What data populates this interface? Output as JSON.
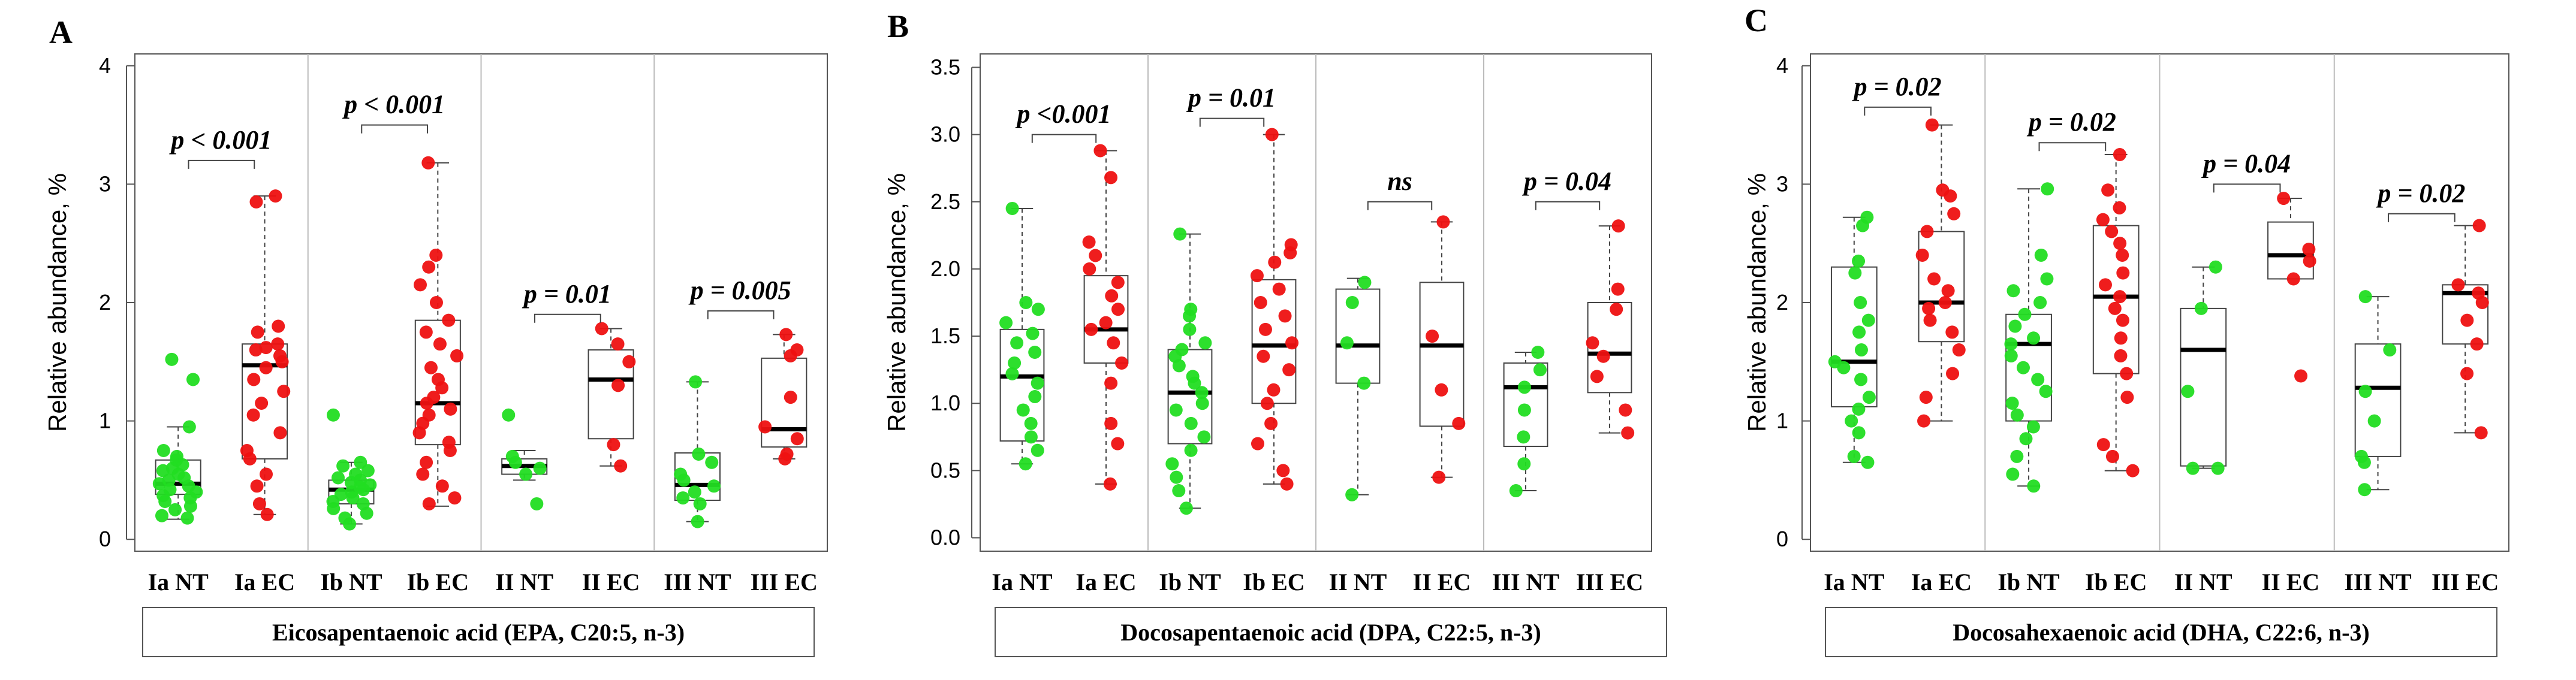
{
  "figure": {
    "panels": [
      "A",
      "B",
      "C"
    ]
  },
  "colors": {
    "nt": "#22dd22",
    "ec": "#ee1111",
    "box": "#444444",
    "frame": "#555555",
    "divider": "#bbbbbb",
    "text": "#000000"
  },
  "chart_data": [
    {
      "type": "box",
      "panel_label": "A",
      "title": "Eicosapentaenoic acid (EPA, C20:5, n-3)",
      "ylabel": "Relative abundance, %",
      "ylim": [
        -0.1,
        4.1
      ],
      "yticks": [
        0,
        1,
        2,
        3,
        4
      ],
      "ytick_labels": [
        "0",
        "1",
        "2",
        "3",
        "4"
      ],
      "categories": [
        "Ia NT",
        "Ia EC",
        "Ib NT",
        "Ib EC",
        "II NT",
        "II EC",
        "III NT",
        "III EC"
      ],
      "boxes": [
        {
          "min": 0.17,
          "q1": 0.38,
          "median": 0.47,
          "q3": 0.67,
          "max": 0.95
        },
        {
          "min": 0.21,
          "q1": 0.68,
          "median": 1.47,
          "q3": 1.65,
          "max": 2.9
        },
        {
          "min": 0.13,
          "q1": 0.3,
          "median": 0.42,
          "q3": 0.5,
          "max": 0.65
        },
        {
          "min": 0.28,
          "q1": 0.8,
          "median": 1.15,
          "q3": 1.85,
          "max": 3.18
        },
        {
          "min": 0.5,
          "q1": 0.55,
          "median": 0.62,
          "q3": 0.68,
          "max": 0.75
        },
        {
          "min": 0.62,
          "q1": 0.85,
          "median": 1.35,
          "q3": 1.6,
          "max": 1.78
        },
        {
          "min": 0.15,
          "q1": 0.33,
          "median": 0.46,
          "q3": 0.73,
          "max": 1.33
        },
        {
          "min": 0.68,
          "q1": 0.78,
          "median": 0.93,
          "q3": 1.53,
          "max": 1.73
        }
      ],
      "points": [
        [
          0.18,
          0.2,
          0.25,
          0.28,
          0.32,
          0.35,
          0.37,
          0.4,
          0.42,
          0.45,
          0.47,
          0.5,
          0.52,
          0.55,
          0.58,
          0.6,
          0.63,
          0.67,
          0.7,
          0.75,
          0.95,
          1.35,
          1.52
        ],
        [
          0.21,
          0.3,
          0.45,
          0.55,
          0.68,
          0.75,
          0.9,
          1.05,
          1.15,
          1.25,
          1.35,
          1.45,
          1.5,
          1.55,
          1.6,
          1.62,
          1.65,
          1.75,
          1.8,
          2.85,
          2.9
        ],
        [
          0.13,
          0.18,
          0.22,
          0.26,
          0.3,
          0.32,
          0.35,
          0.38,
          0.4,
          0.42,
          0.44,
          0.46,
          0.48,
          0.5,
          0.52,
          0.55,
          0.58,
          0.62,
          0.65,
          1.05
        ],
        [
          0.3,
          0.35,
          0.45,
          0.55,
          0.65,
          0.75,
          0.82,
          0.9,
          0.98,
          1.05,
          1.1,
          1.15,
          1.2,
          1.28,
          1.35,
          1.45,
          1.55,
          1.65,
          1.75,
          1.85,
          2.0,
          2.15,
          2.3,
          2.4,
          3.18
        ],
        [
          0.3,
          0.55,
          0.6,
          0.65,
          0.7,
          1.05
        ],
        [
          0.62,
          0.8,
          1.3,
          1.5,
          1.65,
          1.78
        ],
        [
          0.15,
          0.3,
          0.35,
          0.4,
          0.45,
          0.5,
          0.55,
          0.65,
          0.72,
          1.33
        ],
        [
          0.68,
          0.72,
          0.85,
          0.95,
          1.2,
          1.55,
          1.6,
          1.73
        ]
      ],
      "comparisons": [
        {
          "label": "p < 0.001",
          "value": 3.2
        },
        {
          "label": "p < 0.001",
          "value": 3.5
        },
        {
          "label": "p = 0.01",
          "value": 1.9
        },
        {
          "label": "p = 0.005",
          "value": 1.93
        }
      ]
    },
    {
      "type": "box",
      "panel_label": "B",
      "title": "Docosapentaenoic acid (DPA, C22:5, n-3)",
      "ylabel": "Relative abundance, %",
      "ylim": [
        -0.1,
        3.6
      ],
      "yticks": [
        0,
        0.5,
        1,
        1.5,
        2,
        2.5,
        3,
        3.5
      ],
      "ytick_labels": [
        "0.0",
        "0.5",
        "1.0",
        "1.5",
        "2.0",
        "2.5",
        "3.0",
        "3.5"
      ],
      "categories": [
        "Ia NT",
        "Ia EC",
        "Ib NT",
        "Ib EC",
        "II NT",
        "II EC",
        "III NT",
        "III EC"
      ],
      "boxes": [
        {
          "min": 0.55,
          "q1": 0.72,
          "median": 1.2,
          "q3": 1.55,
          "max": 2.45
        },
        {
          "min": 0.4,
          "q1": 1.3,
          "median": 1.55,
          "q3": 1.95,
          "max": 2.88
        },
        {
          "min": 0.22,
          "q1": 0.7,
          "median": 1.08,
          "q3": 1.4,
          "max": 2.26
        },
        {
          "min": 0.4,
          "q1": 1.0,
          "median": 1.43,
          "q3": 1.92,
          "max": 3.0
        },
        {
          "min": 0.32,
          "q1": 1.15,
          "median": 1.43,
          "q3": 1.85,
          "max": 1.93
        },
        {
          "min": 0.45,
          "q1": 0.83,
          "median": 1.43,
          "q3": 1.9,
          "max": 2.35
        },
        {
          "min": 0.35,
          "q1": 0.68,
          "median": 1.12,
          "q3": 1.3,
          "max": 1.38
        },
        {
          "min": 0.78,
          "q1": 1.08,
          "median": 1.37,
          "q3": 1.75,
          "max": 2.32
        }
      ],
      "points": [
        [
          0.55,
          0.65,
          0.75,
          0.85,
          0.95,
          1.05,
          1.15,
          1.22,
          1.3,
          1.38,
          1.45,
          1.52,
          1.6,
          1.7,
          1.75,
          2.45
        ],
        [
          0.4,
          0.7,
          0.85,
          1.15,
          1.3,
          1.45,
          1.55,
          1.6,
          1.7,
          1.8,
          1.9,
          2.0,
          2.1,
          2.2,
          2.68,
          2.88
        ],
        [
          0.22,
          0.35,
          0.45,
          0.55,
          0.65,
          0.75,
          0.85,
          0.95,
          1.0,
          1.08,
          1.15,
          1.2,
          1.28,
          1.35,
          1.4,
          1.45,
          1.55,
          1.65,
          1.7,
          2.26
        ],
        [
          0.4,
          0.5,
          0.7,
          0.85,
          1.0,
          1.1,
          1.25,
          1.35,
          1.45,
          1.55,
          1.65,
          1.75,
          1.85,
          1.95,
          2.05,
          2.12,
          2.18,
          3.0
        ],
        [
          0.32,
          1.15,
          1.45,
          1.75,
          1.9
        ],
        [
          0.45,
          0.85,
          1.1,
          1.5,
          2.35
        ],
        [
          0.35,
          0.55,
          0.75,
          0.95,
          1.12,
          1.25,
          1.38
        ],
        [
          0.78,
          0.95,
          1.2,
          1.35,
          1.45,
          1.7,
          1.85,
          2.32
        ]
      ],
      "comparisons": [
        {
          "label": "p <0.001",
          "value": 3.0
        },
        {
          "label": "p = 0.01",
          "value": 3.12
        },
        {
          "label": "ns",
          "value": 2.5
        },
        {
          "label": "p = 0.04",
          "value": 2.5
        }
      ]
    },
    {
      "type": "box",
      "panel_label": "C",
      "title": "Docosahexaenoic acid (DHA, C22:6, n-3)",
      "ylabel": "Relative abundance, %",
      "ylim": [
        -0.1,
        4.1
      ],
      "yticks": [
        0,
        1,
        2,
        3,
        4
      ],
      "ytick_labels": [
        "0",
        "1",
        "2",
        "3",
        "4"
      ],
      "categories": [
        "Ia NT",
        "Ia EC",
        "Ib NT",
        "Ib EC",
        "II NT",
        "II EC",
        "III NT",
        "III EC"
      ],
      "boxes": [
        {
          "min": 0.65,
          "q1": 1.12,
          "median": 1.5,
          "q3": 2.3,
          "max": 2.72
        },
        {
          "min": 1.0,
          "q1": 1.67,
          "median": 2.0,
          "q3": 2.6,
          "max": 3.5
        },
        {
          "min": 0.45,
          "q1": 1.0,
          "median": 1.65,
          "q3": 1.9,
          "max": 2.96
        },
        {
          "min": 0.58,
          "q1": 1.4,
          "median": 2.05,
          "q3": 2.65,
          "max": 3.25
        },
        {
          "min": 0.6,
          "q1": 0.62,
          "median": 1.6,
          "q3": 1.95,
          "max": 2.3
        },
        {
          "min": 2.2,
          "q1": 2.2,
          "median": 2.4,
          "q3": 2.68,
          "max": 2.88
        },
        {
          "min": 0.42,
          "q1": 0.7,
          "median": 1.28,
          "q3": 1.65,
          "max": 2.05
        },
        {
          "min": 0.9,
          "q1": 1.65,
          "median": 2.08,
          "q3": 2.15,
          "max": 2.65
        }
      ],
      "points": [
        [
          0.65,
          0.7,
          0.9,
          1.0,
          1.1,
          1.2,
          1.35,
          1.45,
          1.5,
          1.6,
          1.75,
          1.85,
          2.0,
          2.25,
          2.35,
          2.65,
          2.72
        ],
        [
          1.0,
          1.2,
          1.4,
          1.6,
          1.75,
          1.85,
          1.95,
          2.0,
          2.1,
          2.2,
          2.4,
          2.6,
          2.75,
          2.9,
          2.95,
          3.5
        ],
        [
          0.45,
          0.55,
          0.7,
          0.85,
          0.95,
          1.05,
          1.15,
          1.25,
          1.35,
          1.45,
          1.55,
          1.65,
          1.7,
          1.8,
          1.9,
          2.0,
          2.1,
          2.2,
          2.4,
          2.96
        ],
        [
          0.58,
          0.7,
          0.8,
          1.2,
          1.4,
          1.55,
          1.7,
          1.85,
          1.95,
          2.05,
          2.15,
          2.25,
          2.4,
          2.5,
          2.6,
          2.7,
          2.8,
          2.95,
          3.25
        ],
        [
          0.6,
          0.6,
          1.25,
          1.95,
          2.3
        ],
        [
          1.38,
          2.2,
          2.35,
          2.45,
          2.88
        ],
        [
          0.42,
          0.65,
          0.7,
          1.0,
          1.25,
          1.6,
          2.05
        ],
        [
          0.9,
          1.4,
          1.65,
          1.85,
          2.0,
          2.08,
          2.15,
          2.65
        ]
      ],
      "comparisons": [
        {
          "label": "p = 0.02",
          "value": 3.65
        },
        {
          "label": "p = 0.02",
          "value": 3.35
        },
        {
          "label": "p = 0.04",
          "value": 3.0
        },
        {
          "label": "p = 0.02",
          "value": 2.75
        }
      ]
    }
  ]
}
